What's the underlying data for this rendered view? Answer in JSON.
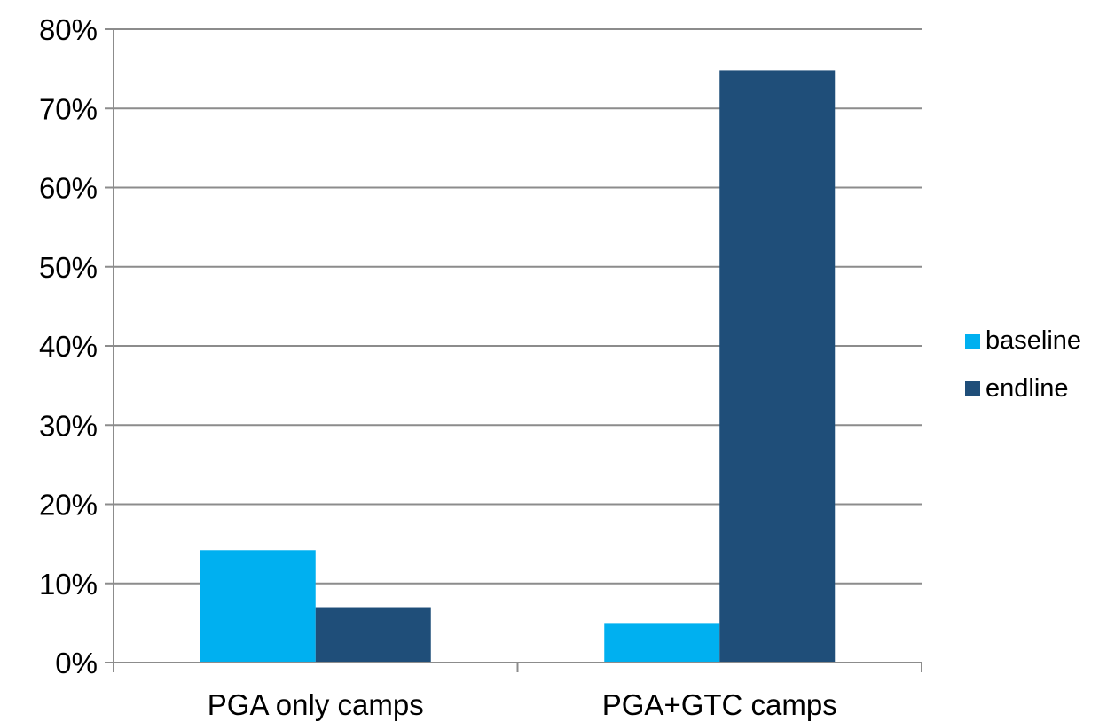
{
  "chart_data": {
    "type": "bar",
    "categories": [
      "PGA only camps",
      "PGA+GTC camps"
    ],
    "series": [
      {
        "name": "baseline",
        "values": [
          14.2,
          5.0
        ],
        "color": "#00b0f0"
      },
      {
        "name": "endline",
        "values": [
          7.0,
          74.8
        ],
        "color": "#1f4e79"
      }
    ],
    "ylim": [
      0,
      80
    ],
    "yticks": [
      0,
      10,
      20,
      30,
      40,
      50,
      60,
      70,
      80
    ],
    "ytick_labels": [
      "0%",
      "10%",
      "20%",
      "30%",
      "40%",
      "50%",
      "60%",
      "70%",
      "80%"
    ],
    "grid": true,
    "legend_position": "right"
  }
}
